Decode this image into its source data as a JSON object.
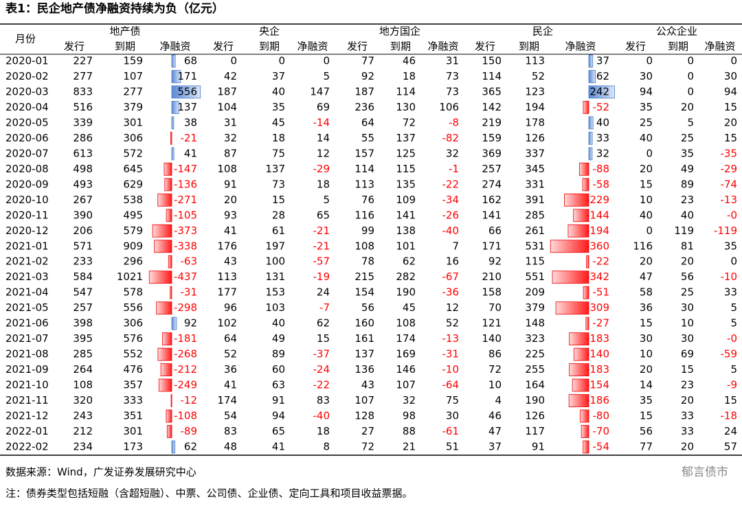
{
  "header": {
    "title": "表1：民企地产债净融资持续为负（亿元）"
  },
  "table": {
    "month_header": "月份",
    "groups": [
      {
        "name": "地产债",
        "sub": [
          "发行",
          "到期",
          "净融资"
        ]
      },
      {
        "name": "央企",
        "sub": [
          "发行",
          "到期",
          "净融资"
        ]
      },
      {
        "name": "地方国企",
        "sub": [
          "发行",
          "到期",
          "净融资"
        ]
      },
      {
        "name": "民企",
        "sub": [
          "发行",
          "到期",
          "净融资"
        ]
      },
      {
        "name": "公众企业",
        "sub": [
          "发行",
          "到期",
          "净融资"
        ]
      }
    ],
    "rows": [
      {
        "month": "2020-01",
        "cells": [
          "227",
          "159",
          "68",
          "0",
          "0",
          "0",
          "77",
          "46",
          "31",
          "150",
          "113",
          "37",
          "0",
          "0",
          "0"
        ]
      },
      {
        "month": "2020-02",
        "cells": [
          "277",
          "107",
          "171",
          "42",
          "37",
          "5",
          "92",
          "18",
          "73",
          "114",
          "52",
          "62",
          "30",
          "0",
          "30"
        ]
      },
      {
        "month": "2020-03",
        "cells": [
          "833",
          "277",
          "556",
          "187",
          "40",
          "147",
          "187",
          "114",
          "73",
          "365",
          "123",
          "242",
          "94",
          "0",
          "94"
        ]
      },
      {
        "month": "2020-04",
        "cells": [
          "516",
          "379",
          "137",
          "104",
          "35",
          "69",
          "236",
          "130",
          "106",
          "142",
          "194",
          "-52",
          "35",
          "20",
          "15"
        ]
      },
      {
        "month": "2020-05",
        "cells": [
          "339",
          "301",
          "38",
          "31",
          "45",
          "-14",
          "64",
          "72",
          "-8",
          "219",
          "178",
          "40",
          "25",
          "5",
          "20"
        ]
      },
      {
        "month": "2020-06",
        "cells": [
          "286",
          "306",
          "-21",
          "32",
          "18",
          "14",
          "55",
          "137",
          "-82",
          "159",
          "126",
          "33",
          "40",
          "25",
          "15"
        ]
      },
      {
        "month": "2020-07",
        "cells": [
          "613",
          "572",
          "41",
          "87",
          "75",
          "12",
          "157",
          "125",
          "32",
          "369",
          "337",
          "32",
          "0",
          "35",
          "-35"
        ]
      },
      {
        "month": "2020-08",
        "cells": [
          "498",
          "645",
          "-147",
          "108",
          "137",
          "-29",
          "114",
          "115",
          "-1",
          "257",
          "345",
          "-88",
          "20",
          "49",
          "-29"
        ]
      },
      {
        "month": "2020-09",
        "cells": [
          "493",
          "629",
          "-136",
          "91",
          "73",
          "18",
          "113",
          "135",
          "-22",
          "274",
          "331",
          "-58",
          "15",
          "89",
          "-74"
        ]
      },
      {
        "month": "2020-10",
        "cells": [
          "267",
          "538",
          "-271",
          "20",
          "15",
          "5",
          "76",
          "109",
          "-34",
          "162",
          "391",
          "-229",
          "10",
          "23",
          "-13"
        ]
      },
      {
        "month": "2020-11",
        "cells": [
          "390",
          "495",
          "-105",
          "93",
          "28",
          "65",
          "116",
          "141",
          "-26",
          "141",
          "285",
          "-144",
          "40",
          "40",
          "-0"
        ]
      },
      {
        "month": "2020-12",
        "cells": [
          "206",
          "579",
          "-373",
          "41",
          "61",
          "-21",
          "99",
          "138",
          "-40",
          "66",
          "261",
          "-194",
          "0",
          "119",
          "-119"
        ]
      },
      {
        "month": "2021-01",
        "cells": [
          "571",
          "909",
          "-338",
          "176",
          "197",
          "-21",
          "108",
          "101",
          "7",
          "171",
          "531",
          "-360",
          "116",
          "81",
          "35"
        ]
      },
      {
        "month": "2021-02",
        "cells": [
          "233",
          "296",
          "-63",
          "43",
          "100",
          "-57",
          "78",
          "62",
          "16",
          "92",
          "115",
          "-22",
          "20",
          "20",
          "0"
        ]
      },
      {
        "month": "2021-03",
        "cells": [
          "584",
          "1021",
          "-437",
          "113",
          "131",
          "-19",
          "215",
          "282",
          "-67",
          "210",
          "551",
          "-342",
          "47",
          "56",
          "-10"
        ]
      },
      {
        "month": "2021-04",
        "cells": [
          "547",
          "578",
          "-31",
          "177",
          "153",
          "24",
          "154",
          "190",
          "-36",
          "158",
          "209",
          "-51",
          "58",
          "25",
          "33"
        ]
      },
      {
        "month": "2021-05",
        "cells": [
          "257",
          "556",
          "-298",
          "96",
          "103",
          "-7",
          "56",
          "45",
          "12",
          "70",
          "379",
          "-309",
          "36",
          "30",
          "5"
        ]
      },
      {
        "month": "2021-06",
        "cells": [
          "398",
          "306",
          "92",
          "102",
          "40",
          "62",
          "160",
          "108",
          "52",
          "121",
          "148",
          "-27",
          "15",
          "10",
          "5"
        ]
      },
      {
        "month": "2021-07",
        "cells": [
          "395",
          "576",
          "-181",
          "64",
          "49",
          "15",
          "161",
          "174",
          "-13",
          "140",
          "323",
          "-183",
          "30",
          "30",
          "-0"
        ]
      },
      {
        "month": "2021-08",
        "cells": [
          "285",
          "552",
          "-268",
          "52",
          "89",
          "-37",
          "137",
          "169",
          "-31",
          "86",
          "225",
          "-140",
          "10",
          "69",
          "-59"
        ]
      },
      {
        "month": "2021-09",
        "cells": [
          "264",
          "476",
          "-212",
          "36",
          "60",
          "-24",
          "136",
          "146",
          "-10",
          "72",
          "255",
          "-183",
          "20",
          "15",
          "5"
        ]
      },
      {
        "month": "2021-10",
        "cells": [
          "108",
          "357",
          "-249",
          "41",
          "63",
          "-22",
          "43",
          "107",
          "-64",
          "10",
          "164",
          "-154",
          "14",
          "23",
          "-9"
        ]
      },
      {
        "month": "2021-11",
        "cells": [
          "320",
          "333",
          "-12",
          "174",
          "91",
          "83",
          "107",
          "32",
          "75",
          "4",
          "190",
          "-186",
          "35",
          "20",
          "15"
        ]
      },
      {
        "month": "2021-12",
        "cells": [
          "243",
          "351",
          "-108",
          "54",
          "94",
          "-40",
          "128",
          "98",
          "30",
          "46",
          "126",
          "-80",
          "15",
          "33",
          "-18"
        ]
      },
      {
        "month": "2022-01",
        "cells": [
          "212",
          "301",
          "-89",
          "83",
          "65",
          "18",
          "27",
          "88",
          "-61",
          "47",
          "117",
          "-70",
          "56",
          "33",
          "24"
        ]
      },
      {
        "month": "2022-02",
        "cells": [
          "234",
          "173",
          "62",
          "48",
          "41",
          "8",
          "72",
          "21",
          "51",
          "37",
          "91",
          "-54",
          "77",
          "20",
          "57"
        ]
      }
    ]
  },
  "footer": {
    "source": "数据来源：Wind，广发证券发展研究中心",
    "watermark": "郁言债市",
    "note": "注：债券类型包括短融（含超短融）、中票、公司债、企业债、定向工具和项目收益票据。"
  }
}
